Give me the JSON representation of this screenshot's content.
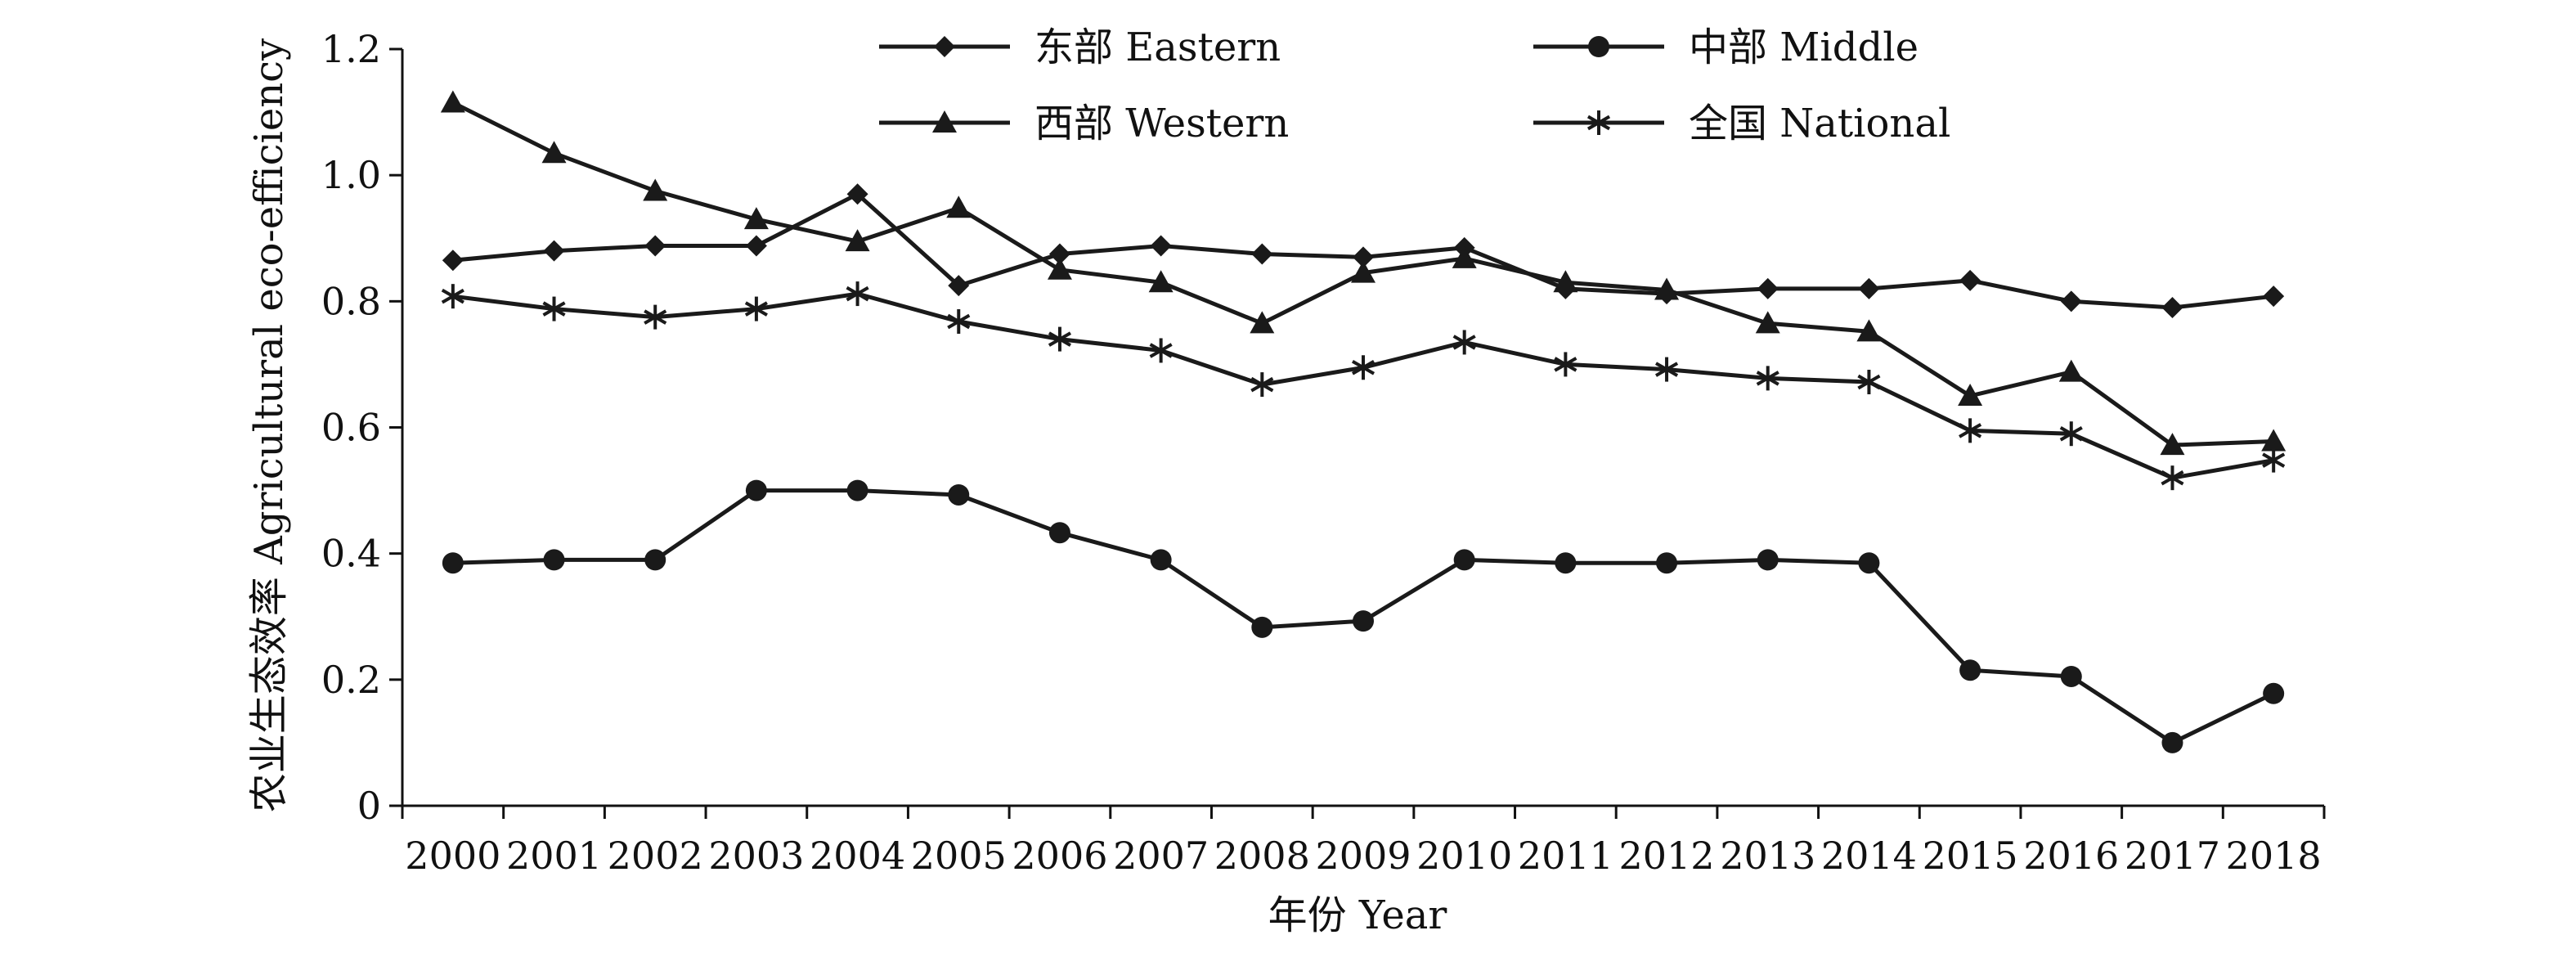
{
  "chart_data": {
    "type": "line",
    "title": "",
    "xlabel": "年份 Year",
    "ylabel": "农业生态效率 Agricultural eco-efficiency",
    "ylim": [
      0,
      1.2
    ],
    "yticks": [
      "0",
      "0.2",
      "0.4",
      "0.6",
      "0.8",
      "1.0",
      "1.2"
    ],
    "grid": false,
    "legend_position": "top-center",
    "categories": [
      "2000",
      "2001",
      "2002",
      "2003",
      "2004",
      "2005",
      "2006",
      "2007",
      "2008",
      "2009",
      "2010",
      "2011",
      "2012",
      "2013",
      "2014",
      "2015",
      "2016",
      "2017",
      "2018"
    ],
    "series": [
      {
        "name": "东部 Eastern",
        "marker": "diamond",
        "values": [
          0.865,
          0.88,
          0.888,
          0.888,
          0.97,
          0.825,
          0.875,
          0.888,
          0.875,
          0.87,
          0.885,
          0.82,
          0.812,
          0.82,
          0.82,
          0.833,
          0.8,
          0.79,
          0.808
        ]
      },
      {
        "name": "中部 Middle",
        "marker": "circle",
        "values": [
          0.385,
          0.39,
          0.39,
          0.5,
          0.5,
          0.493,
          0.433,
          0.39,
          0.283,
          0.293,
          0.39,
          0.385,
          0.385,
          0.39,
          0.385,
          0.215,
          0.205,
          0.1,
          0.178
        ]
      },
      {
        "name": "西部 Western",
        "marker": "triangle",
        "values": [
          1.115,
          1.035,
          0.975,
          0.93,
          0.895,
          0.948,
          0.85,
          0.83,
          0.765,
          0.845,
          0.868,
          0.83,
          0.818,
          0.765,
          0.752,
          0.65,
          0.688,
          0.572,
          0.578
        ]
      },
      {
        "name": "全国 National",
        "marker": "asterisk",
        "values": [
          0.808,
          0.788,
          0.775,
          0.788,
          0.812,
          0.768,
          0.74,
          0.722,
          0.668,
          0.695,
          0.735,
          0.7,
          0.692,
          0.678,
          0.672,
          0.595,
          0.59,
          0.52,
          0.548
        ]
      }
    ],
    "colors": {
      "line": "#1a1a1a",
      "axis": "#111111",
      "background": "#ffffff"
    }
  }
}
